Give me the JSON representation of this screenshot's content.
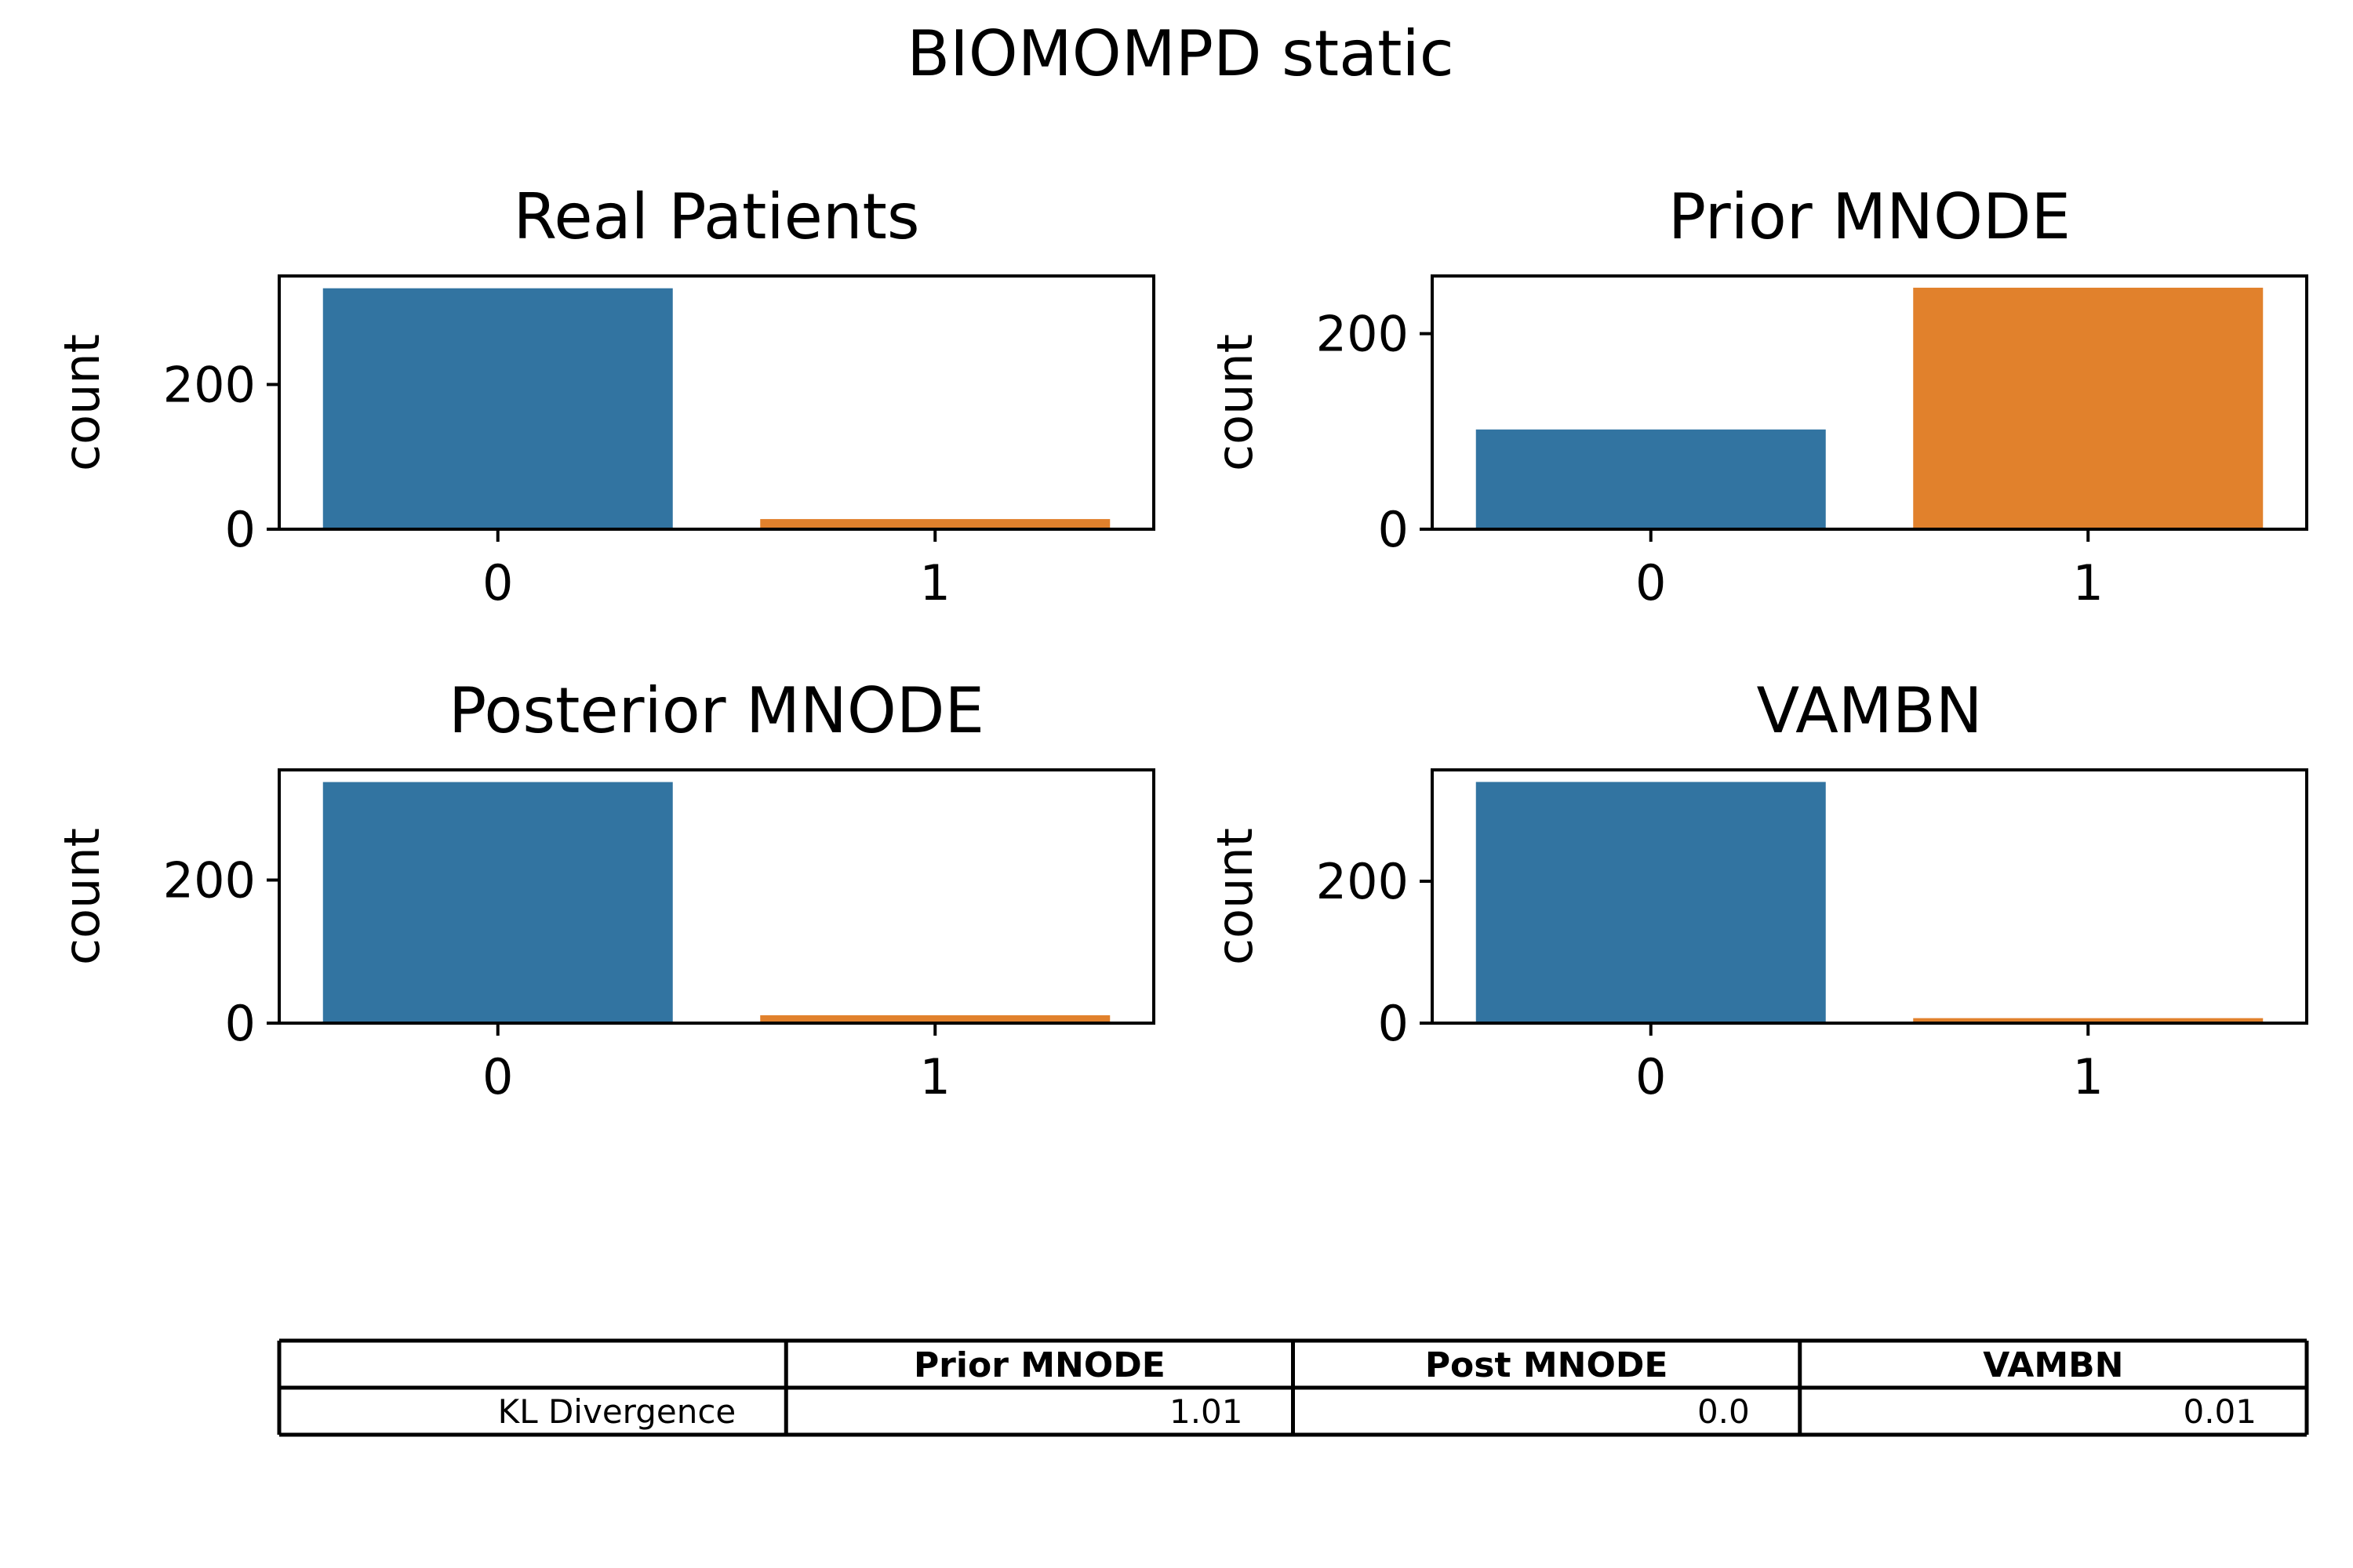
{
  "figure": {
    "title": "BIOMOMPD static"
  },
  "chart_data": [
    {
      "type": "bar",
      "title": "Real Patients",
      "xlabel": "",
      "ylabel": "count",
      "categories": [
        "0",
        "1"
      ],
      "values": [
        333,
        14
      ],
      "ylim": [
        0,
        350
      ],
      "yticks": [
        0,
        200
      ],
      "colors": [
        "#3274a1",
        "#e1812c"
      ],
      "grid": false
    },
    {
      "type": "bar",
      "title": "Prior MNODE",
      "xlabel": "",
      "ylabel": "count",
      "categories": [
        "0",
        "1"
      ],
      "values": [
        102,
        247
      ],
      "ylim": [
        0,
        259
      ],
      "yticks": [
        0,
        200
      ],
      "colors": [
        "#3274a1",
        "#e1812c"
      ],
      "grid": false
    },
    {
      "type": "bar",
      "title": "Posterior MNODE",
      "xlabel": "",
      "ylabel": "count",
      "categories": [
        "0",
        "1"
      ],
      "values": [
        337,
        11
      ],
      "ylim": [
        0,
        354
      ],
      "yticks": [
        0,
        200
      ],
      "colors": [
        "#3274a1",
        "#e1812c"
      ],
      "grid": false
    },
    {
      "type": "bar",
      "title": "VAMBN",
      "xlabel": "",
      "ylabel": "count",
      "categories": [
        "0",
        "1"
      ],
      "values": [
        340,
        7
      ],
      "ylim": [
        0,
        357
      ],
      "yticks": [
        0,
        200
      ],
      "colors": [
        "#3274a1",
        "#e1812c"
      ],
      "grid": false
    },
    {
      "type": "table",
      "columns": [
        "",
        "Prior MNODE",
        "Post MNODE",
        "VAMBN"
      ],
      "rows": [
        [
          "KL Divergence",
          "1.01",
          "0.0",
          "0.01"
        ]
      ]
    }
  ]
}
